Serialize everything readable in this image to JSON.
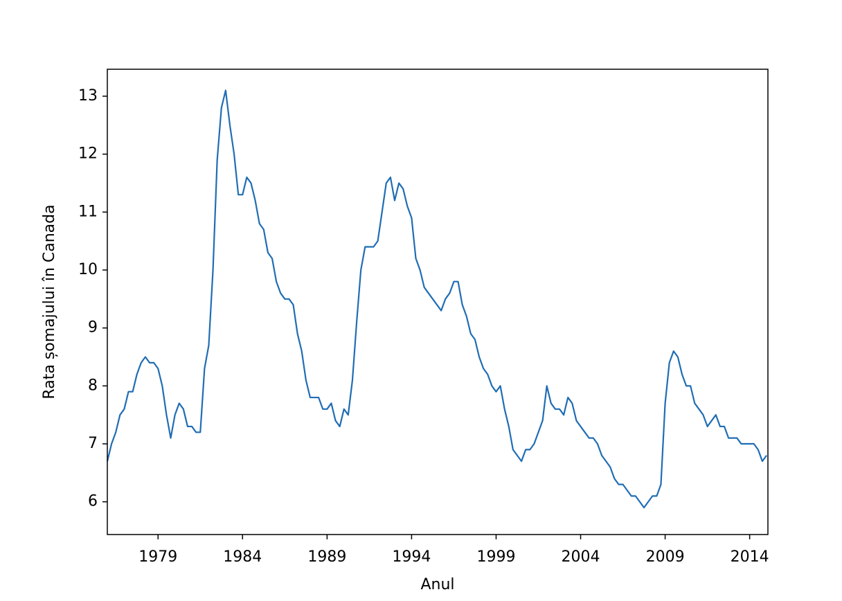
{
  "chart_data": {
    "type": "line",
    "x_label": "Anul",
    "y_label": "Rata șomajului în Canada",
    "x": [
      1976,
      1976.25,
      1976.5,
      1976.75,
      1977,
      1977.25,
      1977.5,
      1977.75,
      1978,
      1978.25,
      1978.5,
      1978.75,
      1979,
      1979.25,
      1979.5,
      1979.75,
      1980,
      1980.25,
      1980.5,
      1980.75,
      1981,
      1981.25,
      1981.5,
      1981.75,
      1982,
      1982.25,
      1982.5,
      1982.75,
      1983,
      1983.25,
      1983.5,
      1983.75,
      1984,
      1984.25,
      1984.5,
      1984.75,
      1985,
      1985.25,
      1985.5,
      1985.75,
      1986,
      1986.25,
      1986.5,
      1986.75,
      1987,
      1987.25,
      1987.5,
      1987.75,
      1988,
      1988.25,
      1988.5,
      1988.75,
      1989,
      1989.25,
      1989.5,
      1989.75,
      1990,
      1990.25,
      1990.5,
      1990.75,
      1991,
      1991.25,
      1991.5,
      1991.75,
      1992,
      1992.25,
      1992.5,
      1992.75,
      1993,
      1993.25,
      1993.5,
      1993.75,
      1994,
      1994.25,
      1994.5,
      1994.75,
      1995,
      1995.25,
      1995.5,
      1995.75,
      1996,
      1996.25,
      1996.5,
      1996.75,
      1997,
      1997.25,
      1997.5,
      1997.75,
      1998,
      1998.25,
      1998.5,
      1998.75,
      1999,
      1999.25,
      1999.5,
      1999.75,
      2000,
      2000.25,
      2000.5,
      2000.75,
      2001,
      2001.25,
      2001.5,
      2001.75,
      2002,
      2002.25,
      2002.5,
      2002.75,
      2003,
      2003.25,
      2003.5,
      2003.75,
      2004,
      2004.25,
      2004.5,
      2004.75,
      2005,
      2005.25,
      2005.5,
      2005.75,
      2006,
      2006.25,
      2006.5,
      2006.75,
      2007,
      2007.25,
      2007.5,
      2007.75,
      2008,
      2008.25,
      2008.5,
      2008.75,
      2009,
      2009.25,
      2009.5,
      2009.75,
      2010,
      2010.25,
      2010.5,
      2010.75,
      2011,
      2011.25,
      2011.5,
      2011.75,
      2012,
      2012.25,
      2012.5,
      2012.75,
      2013,
      2013.25,
      2013.5,
      2013.75,
      2014,
      2014.25,
      2014.5,
      2014.75,
      2015
    ],
    "series": [
      {
        "name": "Rata șomajului în Canada",
        "color": "#1f6db4",
        "values": [
          6.7,
          7.0,
          7.2,
          7.5,
          7.6,
          7.9,
          7.9,
          8.2,
          8.4,
          8.5,
          8.4,
          8.4,
          8.3,
          8.0,
          7.5,
          7.1,
          7.5,
          7.7,
          7.6,
          7.3,
          7.3,
          7.2,
          7.2,
          8.3,
          8.7,
          10.0,
          11.9,
          12.8,
          13.1,
          12.5,
          12.0,
          11.3,
          11.3,
          11.6,
          11.5,
          11.2,
          10.8,
          10.7,
          10.3,
          10.2,
          9.8,
          9.6,
          9.5,
          9.5,
          9.4,
          8.9,
          8.6,
          8.1,
          7.8,
          7.8,
          7.8,
          7.6,
          7.6,
          7.7,
          7.4,
          7.3,
          7.6,
          7.5,
          8.1,
          9.1,
          10.0,
          10.4,
          10.4,
          10.4,
          10.5,
          11.0,
          11.5,
          11.6,
          11.2,
          11.5,
          11.4,
          11.1,
          10.9,
          10.2,
          10.0,
          9.7,
          9.6,
          9.5,
          9.4,
          9.3,
          9.5,
          9.6,
          9.8,
          9.8,
          9.4,
          9.2,
          8.9,
          8.8,
          8.5,
          8.3,
          8.2,
          8.0,
          7.9,
          8.0,
          7.6,
          7.3,
          6.9,
          6.8,
          6.7,
          6.9,
          6.9,
          7.0,
          7.2,
          7.4,
          8.0,
          7.7,
          7.6,
          7.6,
          7.5,
          7.8,
          7.7,
          7.4,
          7.3,
          7.2,
          7.1,
          7.1,
          7.0,
          6.8,
          6.7,
          6.6,
          6.4,
          6.3,
          6.3,
          6.2,
          6.1,
          6.1,
          6.0,
          5.9,
          6.0,
          6.1,
          6.1,
          6.3,
          7.7,
          8.4,
          8.6,
          8.5,
          8.2,
          8.0,
          8.0,
          7.7,
          7.6,
          7.5,
          7.3,
          7.4,
          7.5,
          7.3,
          7.3,
          7.1,
          7.1,
          7.1,
          7.0,
          7.0,
          7.0,
          7.0,
          6.9,
          6.7,
          6.8
        ]
      }
    ],
    "xlim": [
      1976,
      2015.08
    ],
    "xticks": [
      1979,
      1984,
      1989,
      1994,
      1999,
      2004,
      2009,
      2014
    ],
    "ylim": [
      5.435,
      13.465
    ],
    "yticks": [
      6,
      7,
      8,
      9,
      10,
      11,
      12,
      13
    ],
    "grid": false
  }
}
